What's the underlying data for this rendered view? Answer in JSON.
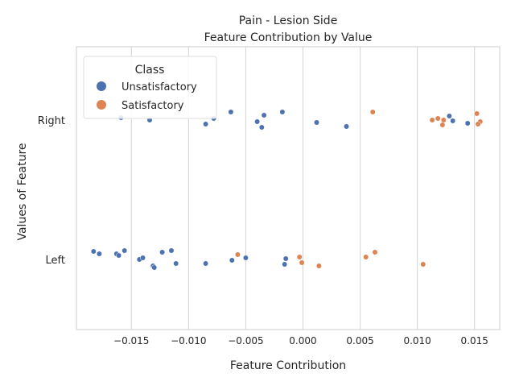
{
  "chart_data": {
    "type": "scatter",
    "title": "Pain - Lesion Side",
    "subtitle": "Feature Contribution by Value",
    "xlabel": "Feature Contribution",
    "ylabel": "Values of Feature",
    "xlim": [
      -0.0198,
      0.0172
    ],
    "x_ticks": [
      -0.015,
      -0.01,
      -0.005,
      0.0,
      0.005,
      0.01,
      0.015
    ],
    "x_tick_labels": [
      "−0.015",
      "−0.010",
      "−0.005",
      "0.000",
      "0.005",
      "0.010",
      "0.015"
    ],
    "categories": [
      "Right",
      "Left"
    ],
    "grid": true,
    "legend": {
      "title": "Class",
      "placement": "top-left",
      "entries": [
        {
          "name": "Unsatisfactory",
          "color": "#4c72b0"
        },
        {
          "name": "Satisfactory",
          "color": "#dd8452"
        }
      ]
    },
    "series": [
      {
        "name": "Unsatisfactory",
        "color": "#4c72b0",
        "points": [
          {
            "x": -0.0159,
            "cat": "Right",
            "jitter": 0.03
          },
          {
            "x": -0.0134,
            "cat": "Right",
            "jitter": 0.0
          },
          {
            "x": -0.0085,
            "cat": "Right",
            "jitter": -0.05
          },
          {
            "x": -0.0078,
            "cat": "Right",
            "jitter": 0.02
          },
          {
            "x": -0.0063,
            "cat": "Right",
            "jitter": 0.1
          },
          {
            "x": -0.004,
            "cat": "Right",
            "jitter": -0.02
          },
          {
            "x": -0.0036,
            "cat": "Right",
            "jitter": -0.09
          },
          {
            "x": -0.0034,
            "cat": "Right",
            "jitter": 0.06
          },
          {
            "x": -0.0018,
            "cat": "Right",
            "jitter": 0.1
          },
          {
            "x": 0.0012,
            "cat": "Right",
            "jitter": -0.03
          },
          {
            "x": 0.0038,
            "cat": "Right",
            "jitter": -0.08
          },
          {
            "x": 0.0128,
            "cat": "Right",
            "jitter": 0.05
          },
          {
            "x": 0.0131,
            "cat": "Right",
            "jitter": -0.01
          },
          {
            "x": 0.0144,
            "cat": "Right",
            "jitter": -0.04
          },
          {
            "x": -0.0183,
            "cat": "Left",
            "jitter": 0.1
          },
          {
            "x": -0.0178,
            "cat": "Left",
            "jitter": 0.07
          },
          {
            "x": -0.0163,
            "cat": "Left",
            "jitter": 0.07
          },
          {
            "x": -0.0161,
            "cat": "Left",
            "jitter": 0.05
          },
          {
            "x": -0.0156,
            "cat": "Left",
            "jitter": 0.11
          },
          {
            "x": -0.0143,
            "cat": "Left",
            "jitter": 0.0
          },
          {
            "x": -0.014,
            "cat": "Left",
            "jitter": 0.02
          },
          {
            "x": -0.0131,
            "cat": "Left",
            "jitter": -0.08
          },
          {
            "x": -0.013,
            "cat": "Left",
            "jitter": -0.1
          },
          {
            "x": -0.0123,
            "cat": "Left",
            "jitter": 0.09
          },
          {
            "x": -0.0115,
            "cat": "Left",
            "jitter": 0.11
          },
          {
            "x": -0.0111,
            "cat": "Left",
            "jitter": -0.05
          },
          {
            "x": -0.0085,
            "cat": "Left",
            "jitter": -0.05
          },
          {
            "x": -0.0062,
            "cat": "Left",
            "jitter": -0.01
          },
          {
            "x": -0.005,
            "cat": "Left",
            "jitter": 0.02
          },
          {
            "x": -0.0016,
            "cat": "Left",
            "jitter": -0.06
          },
          {
            "x": -0.0015,
            "cat": "Left",
            "jitter": 0.01
          }
        ]
      },
      {
        "name": "Satisfactory",
        "color": "#dd8452",
        "points": [
          {
            "x": 0.0061,
            "cat": "Right",
            "jitter": 0.1
          },
          {
            "x": 0.0113,
            "cat": "Right",
            "jitter": 0.0
          },
          {
            "x": 0.0118,
            "cat": "Right",
            "jitter": 0.02
          },
          {
            "x": 0.0123,
            "cat": "Right",
            "jitter": 0.0
          },
          {
            "x": 0.0122,
            "cat": "Right",
            "jitter": -0.06
          },
          {
            "x": 0.0152,
            "cat": "Right",
            "jitter": 0.08
          },
          {
            "x": 0.0155,
            "cat": "Right",
            "jitter": -0.02
          },
          {
            "x": 0.0153,
            "cat": "Right",
            "jitter": -0.05
          },
          {
            "x": -0.0057,
            "cat": "Left",
            "jitter": 0.06
          },
          {
            "x": -0.0003,
            "cat": "Left",
            "jitter": 0.03
          },
          {
            "x": -0.0001,
            "cat": "Left",
            "jitter": -0.04
          },
          {
            "x": 0.0014,
            "cat": "Left",
            "jitter": -0.08
          },
          {
            "x": 0.0055,
            "cat": "Left",
            "jitter": 0.03
          },
          {
            "x": 0.0063,
            "cat": "Left",
            "jitter": 0.09
          },
          {
            "x": 0.0105,
            "cat": "Left",
            "jitter": -0.06
          }
        ]
      }
    ]
  }
}
